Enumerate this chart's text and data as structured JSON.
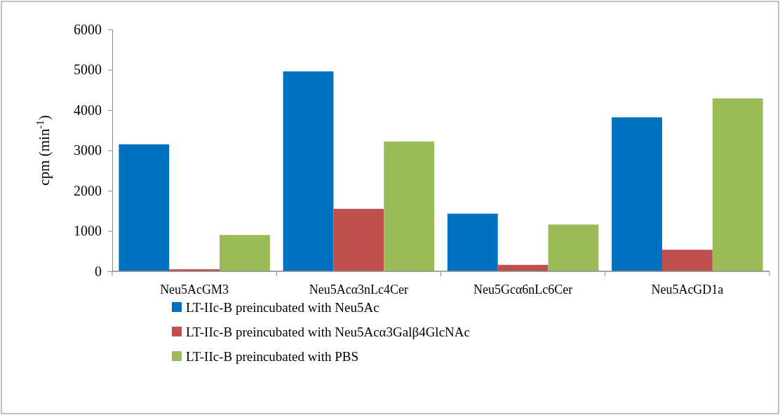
{
  "chart_data": {
    "type": "bar",
    "ylabel": "cpm (min$^{-1}$)",
    "categories": [
      "Neu5AcGM3",
      "Neu5Acα3nLc4Cer",
      "Neu5Gcα6nLc6Cer",
      "Neu5AcGD1a"
    ],
    "series": [
      {
        "name": "LT-IIc-B preincubated with Neu5Ac",
        "color": "#0070c0",
        "values": [
          3150,
          4960,
          1430,
          3820
        ]
      },
      {
        "name": "LT-IIc-B preincubated with Neu5Acα3Galβ4GlcNAc",
        "color": "#c0504d",
        "values": [
          50,
          1550,
          160,
          535
        ]
      },
      {
        "name": "LT-IIc-B preincubated with PBS",
        "color": "#9bbb59",
        "values": [
          900,
          3220,
          1160,
          4290
        ]
      }
    ],
    "ylim": [
      0,
      6000
    ],
    "yticks": [
      0,
      1000,
      2000,
      3000,
      4000,
      5000,
      6000
    ],
    "grid": false,
    "legend": "bottom"
  }
}
